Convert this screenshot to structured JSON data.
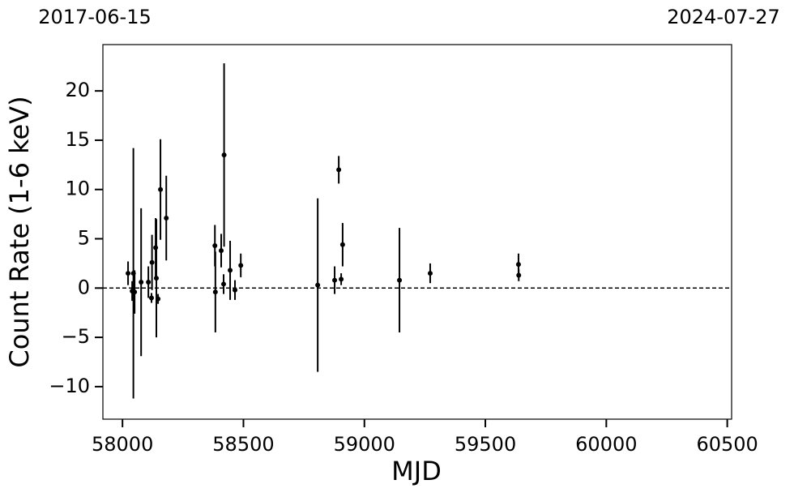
{
  "chart_data": {
    "type": "errorbar",
    "xlabel": "MJD",
    "ylabel": "Count Rate (1-6 keV)",
    "x": [
      58023,
      58040,
      58045,
      58050,
      58077,
      58107,
      58120,
      58122,
      58137,
      58140,
      58147,
      58157,
      58181,
      58382,
      58384,
      58408,
      58418,
      58420,
      58445,
      58465,
      58489,
      58807,
      58877,
      58894,
      58904,
      58910,
      59145,
      59272,
      59637,
      59638
    ],
    "values": [
      1.5,
      -0.3,
      1.5,
      -0.4,
      0.6,
      0.6,
      -1.0,
      2.6,
      4.1,
      1.0,
      -1.1,
      10.0,
      7.1,
      4.3,
      -0.4,
      3.8,
      0.4,
      13.5,
      1.8,
      -0.2,
      2.3,
      0.3,
      0.8,
      12.0,
      0.9,
      4.4,
      0.8,
      1.5,
      2.4,
      1.3
    ],
    "errors": [
      1.2,
      1.0,
      12.7,
      2.2,
      7.5,
      1.6,
      0.5,
      2.8,
      3.0,
      6.0,
      0.5,
      5.1,
      4.3,
      2.1,
      4.1,
      1.7,
      1.0,
      9.3,
      3.0,
      1.0,
      1.2,
      8.8,
      1.4,
      1.4,
      0.6,
      2.2,
      5.3,
      1.0,
      1.1,
      0.6
    ],
    "color": "#000000",
    "reference_line": 0,
    "xlim": [
      57919,
      60518
    ],
    "ylim": [
      -13.3,
      24.7
    ],
    "xticks": [
      58000,
      58500,
      59000,
      59500,
      60000,
      60500
    ],
    "yticks": [
      {
        "value": -10,
        "label": "−10"
      },
      {
        "value": -5,
        "label": "−5"
      },
      0,
      5,
      10,
      15,
      20
    ],
    "x2ticks": [
      {
        "value": 57919,
        "label": "2017-06-15"
      },
      {
        "value": 60518,
        "label": "2024-07-27"
      }
    ]
  }
}
